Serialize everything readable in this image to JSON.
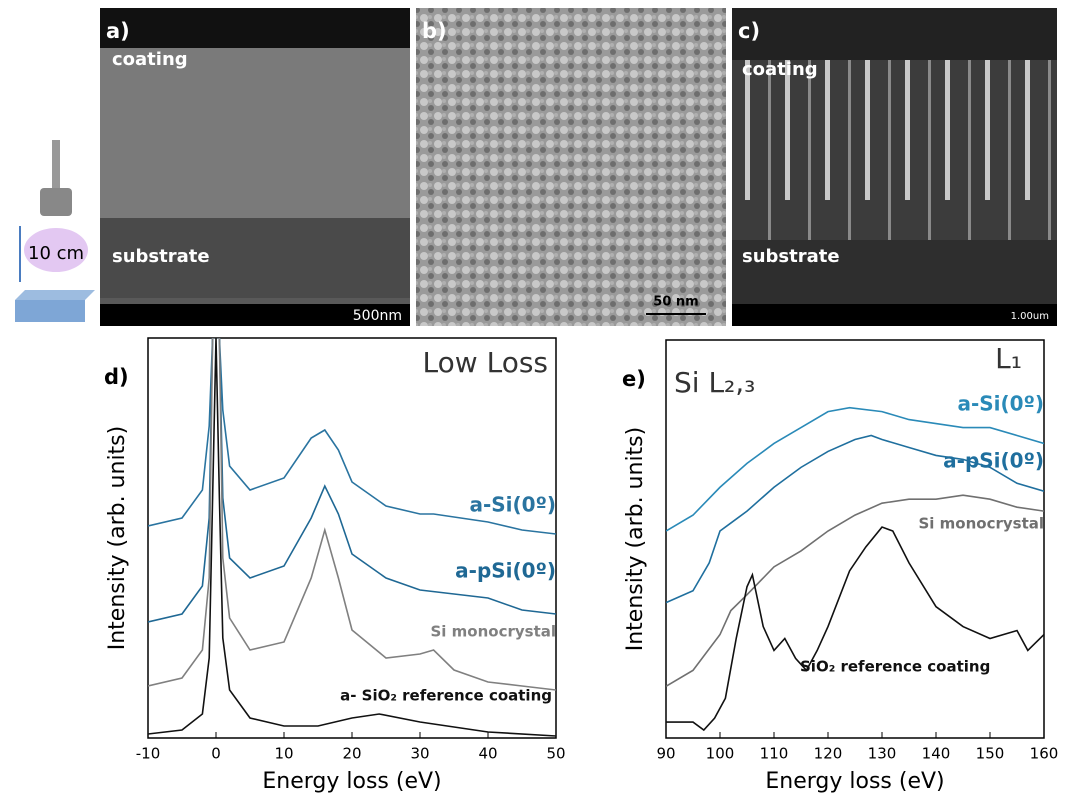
{
  "panels": [
    {
      "label": "a)",
      "texts": [
        "coating",
        "substrate"
      ],
      "scale": "500nm"
    },
    {
      "label": "b)",
      "texts": [],
      "scale": "50 nm"
    },
    {
      "label": "c)",
      "texts": [
        "coating",
        "substrate"
      ],
      "scale": "1.00um"
    }
  ],
  "setup_label": "10 cm",
  "chart_data": [
    {
      "type": "line",
      "panel": "d)",
      "title": "Low Loss",
      "x_label": "Energy loss (eV)",
      "y_label": "Intensity (arb. units)",
      "xlim": [
        -10,
        50
      ],
      "xticks": [
        -10,
        0,
        10,
        20,
        30,
        40,
        50
      ],
      "ylim": [
        0,
        100
      ],
      "series": [
        {
          "name": "a-Si(0º)",
          "color": "#2a74a0",
          "x": [
            -10,
            -5,
            -2,
            -1,
            -0.5,
            0.5,
            1,
            2,
            5,
            10,
            14,
            16,
            18,
            20,
            25,
            30,
            32,
            40,
            45,
            50
          ],
          "values": [
            53,
            55,
            62,
            78,
            100,
            100,
            82,
            68,
            62,
            65,
            75,
            77,
            72,
            64,
            58,
            56,
            56,
            54,
            52,
            51
          ]
        },
        {
          "name": "a-pSi(0º)",
          "color": "#1f6894",
          "x": [
            -10,
            -5,
            -2,
            -1,
            -0.5,
            0.5,
            1,
            2,
            5,
            10,
            14,
            16,
            18,
            20,
            25,
            30,
            35,
            40,
            45,
            50
          ],
          "values": [
            29,
            31,
            38,
            55,
            100,
            100,
            60,
            45,
            40,
            43,
            55,
            63,
            56,
            46,
            40,
            37,
            36,
            35,
            32,
            31
          ]
        },
        {
          "name": "Si monocrystal",
          "color": "#808080",
          "x": [
            -10,
            -5,
            -2,
            -1,
            -0.5,
            0.5,
            1,
            2,
            5,
            10,
            14,
            16,
            18,
            20,
            25,
            30,
            32,
            35,
            40,
            45,
            50
          ],
          "values": [
            13,
            15,
            22,
            40,
            100,
            100,
            45,
            30,
            22,
            24,
            40,
            52,
            40,
            27,
            20,
            21,
            22,
            17,
            14,
            13,
            12
          ]
        },
        {
          "name": "a- SiO₂ reference coating",
          "color": "#111111",
          "x": [
            -10,
            -5,
            -2,
            -1,
            -0.5,
            0,
            0.5,
            1,
            2,
            5,
            10,
            15,
            20,
            24,
            30,
            40,
            50
          ],
          "values": [
            1,
            2,
            6,
            20,
            60,
            100,
            60,
            25,
            12,
            5,
            3,
            3,
            5,
            6,
            4,
            1.5,
            0.5
          ]
        }
      ]
    },
    {
      "type": "line",
      "panel": "e)",
      "annotations": [
        "Si L₂,₃",
        "L₁"
      ],
      "x_label": "Energy loss (eV)",
      "y_label": "Intensity (arb. units)",
      "xlim": [
        90,
        160
      ],
      "xticks": [
        90,
        100,
        110,
        120,
        130,
        140,
        150,
        160
      ],
      "ylim": [
        0,
        100
      ],
      "series": [
        {
          "name": "a-Si(0º)",
          "color": "#2a8ab8",
          "x": [
            90,
            95,
            100,
            105,
            110,
            115,
            120,
            124,
            130,
            135,
            140,
            145,
            150,
            155,
            160
          ],
          "values": [
            52,
            56,
            63,
            69,
            74,
            78,
            82,
            83,
            82,
            80,
            79,
            78,
            78,
            76,
            74
          ]
        },
        {
          "name": "a-pSi(0º)",
          "color": "#1f6f9e",
          "x": [
            90,
            95,
            98,
            100,
            102,
            105,
            110,
            115,
            120,
            125,
            128,
            130,
            135,
            140,
            145,
            150,
            155,
            160
          ],
          "values": [
            34,
            37,
            44,
            52,
            54,
            57,
            63,
            68,
            72,
            75,
            76,
            75,
            73,
            71,
            70,
            68,
            64,
            62
          ]
        },
        {
          "name": "Si monocrystal",
          "color": "#707070",
          "x": [
            90,
            95,
            100,
            102,
            105,
            110,
            115,
            120,
            125,
            130,
            135,
            140,
            145,
            150,
            155,
            160
          ],
          "values": [
            13,
            17,
            26,
            32,
            36,
            43,
            47,
            52,
            56,
            59,
            60,
            60,
            61,
            60,
            58,
            57
          ]
        },
        {
          "name": "SiO₂ reference coating",
          "color": "#111111",
          "x": [
            90,
            95,
            97,
            99,
            101,
            103,
            105,
            106,
            108,
            110,
            112,
            114,
            116,
            118,
            120,
            124,
            127,
            130,
            132,
            135,
            140,
            145,
            150,
            155,
            157,
            160
          ],
          "values": [
            4,
            4,
            2,
            5,
            10,
            25,
            38,
            41,
            28,
            22,
            25,
            20,
            17,
            22,
            28,
            42,
            48,
            53,
            52,
            44,
            33,
            28,
            25,
            27,
            22,
            26
          ]
        }
      ]
    }
  ]
}
